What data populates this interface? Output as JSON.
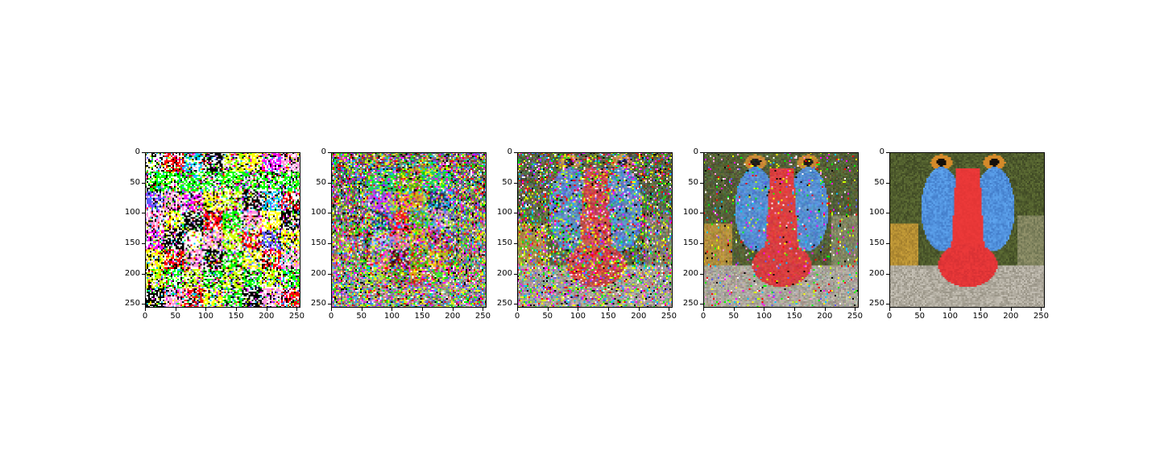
{
  "figure": {
    "panel_count": 5,
    "panels": [
      {
        "stage": 1,
        "content": "8x8 block mosaic of noisy colored tiles, no recognizable face"
      },
      {
        "stage": 2,
        "content": "heavy noise with emerging colored blocks in center"
      },
      {
        "stage": 3,
        "content": "mandrill face visible: blue cheeks, red nose, with strong noise"
      },
      {
        "stage": 4,
        "content": "mandrill face mostly clear with light noise and fuzz"
      },
      {
        "stage": 5,
        "content": "clean mandrill face: blue cheeks, red nose, orange eyes, greenish fur"
      }
    ],
    "x_ticks": [
      "0",
      "50",
      "100",
      "150",
      "200",
      "250"
    ],
    "y_ticks": [
      "0",
      "50",
      "100",
      "150",
      "200",
      "250"
    ],
    "x_range": [
      0,
      256
    ],
    "y_range": [
      256,
      0
    ],
    "colors": {
      "nose_red": "#ee3a3a",
      "cheek_blue": "#5fa6f0",
      "fur_green": "#5f6f35",
      "fur_gold": "#c9a03a",
      "eye_orange": "#d48a2a",
      "beard_gray": "#c8c3b8"
    }
  }
}
